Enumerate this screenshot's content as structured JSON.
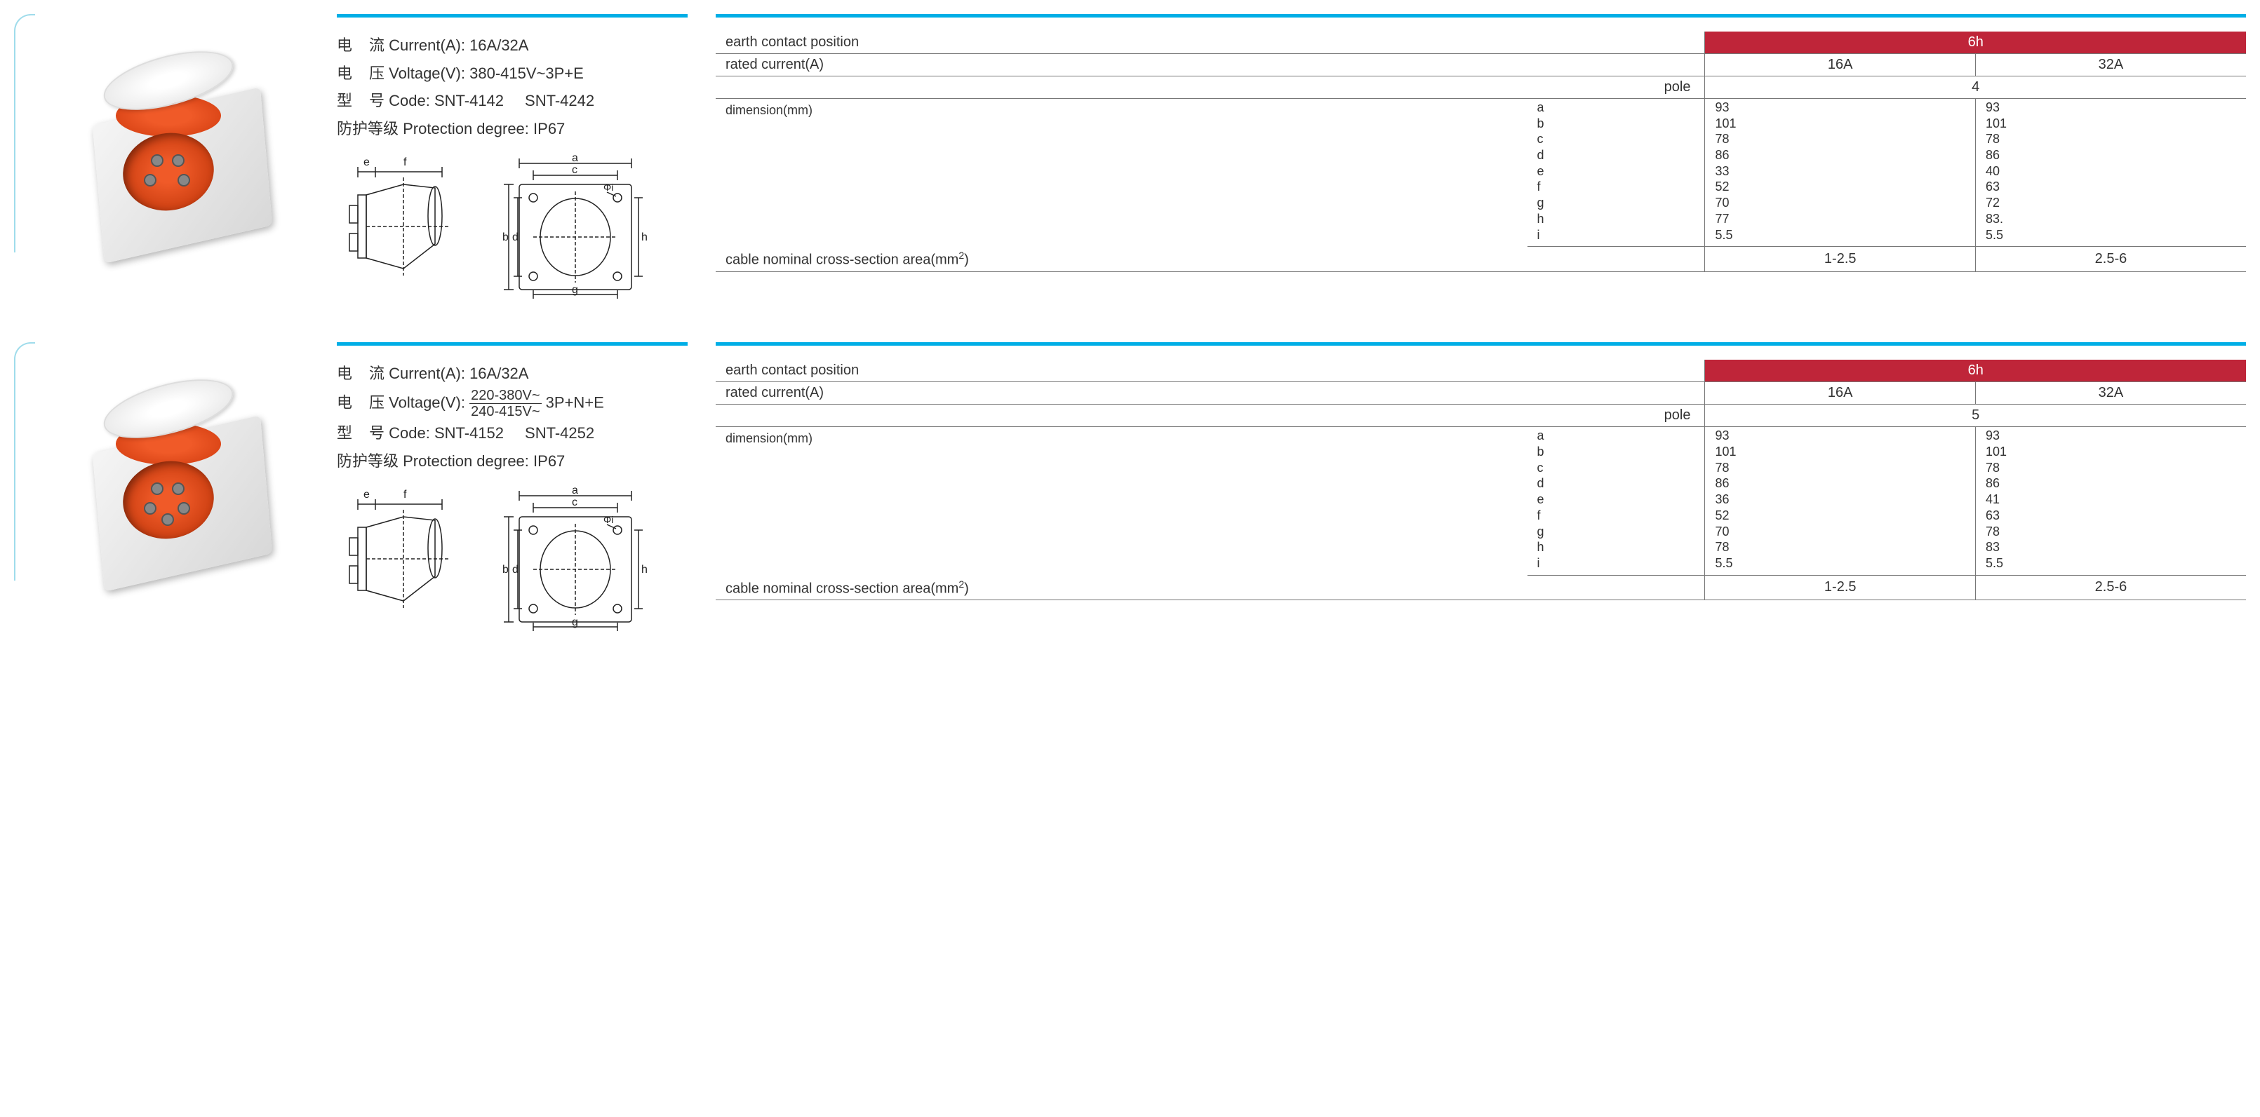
{
  "colors": {
    "topbar": "#00aee6",
    "bracket": "#9fdceb",
    "redcell": "#bf2539",
    "socket_red": "#f05a28",
    "text": "#333333",
    "border": "#777777"
  },
  "labels": {
    "current_cn": "电",
    "current_cn2": "流",
    "current_en": "Current(A):",
    "voltage_cn": "电",
    "voltage_cn2": "压",
    "voltage_en": "Voltage(V):",
    "code_cn": "型",
    "code_cn2": "号",
    "code_en": "Code:",
    "protection_cn": "防护等级",
    "protection_en": "Protection degree:",
    "earth_contact": "earth contact position",
    "rated_current": "rated current(A)",
    "pole": "pole",
    "dimension": "dimension(mm)",
    "cable_section": "cable nominal cross-section area(mm²)"
  },
  "dim_keys": [
    "a",
    "b",
    "c",
    "d",
    "e",
    "f",
    "g",
    "h",
    "i"
  ],
  "products": [
    {
      "current": "16A/32A",
      "voltage_simple": "380-415V~3P+E",
      "voltage_frac": null,
      "voltage_suffix": "",
      "codes": [
        "SNT-4142",
        "SNT-4242"
      ],
      "protection": "IP67",
      "earth_pos": "6h",
      "rated": [
        "16A",
        "32A"
      ],
      "pole": "4",
      "dims_16": [
        "93",
        "101",
        "78",
        "86",
        "33",
        "52",
        "70",
        "77",
        "5.5"
      ],
      "dims_32": [
        "93",
        "101",
        "78",
        "86",
        "40",
        "63",
        "72",
        "83.",
        "5.5"
      ],
      "cable": [
        "1-2.5",
        "2.5-6"
      ],
      "holes": 4
    },
    {
      "current": "16A/32A",
      "voltage_simple": null,
      "voltage_frac": {
        "top": "220-380V~",
        "bot": "240-415V~"
      },
      "voltage_suffix": "3P+N+E",
      "codes": [
        "SNT-4152",
        "SNT-4252"
      ],
      "protection": "IP67",
      "earth_pos": "6h",
      "rated": [
        "16A",
        "32A"
      ],
      "pole": "5",
      "dims_16": [
        "93",
        "101",
        "78",
        "86",
        "36",
        "52",
        "70",
        "78",
        "5.5"
      ],
      "dims_32": [
        "93",
        "101",
        "78",
        "86",
        "41",
        "63",
        "78",
        "83",
        "5.5"
      ],
      "cable": [
        "1-2.5",
        "2.5-6"
      ],
      "holes": 5
    }
  ],
  "drawing_labels": [
    "a",
    "b",
    "c",
    "d",
    "e",
    "f",
    "g",
    "h",
    "i",
    "Φi"
  ]
}
